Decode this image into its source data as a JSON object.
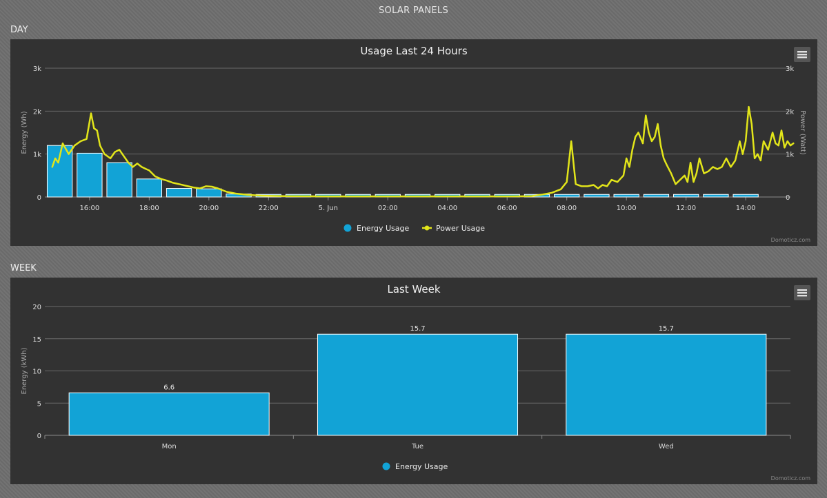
{
  "page": {
    "title": "SOLAR PANELS",
    "day_section": "DAY",
    "week_section": "WEEK",
    "credit": "Domoticz.com"
  },
  "colors": {
    "energy": "#12a3d6",
    "power": "#e2e51a",
    "panel_bg": "#323232",
    "grid": "#6a6a6a"
  },
  "icons": {
    "menu": "hamburger-menu-icon"
  },
  "chart_data": [
    {
      "id": "day",
      "type": "bar+line",
      "title": "Usage Last 24 Hours",
      "ylabel_left": "Energy (Wh)",
      "ylabel_right": "Power (Watt)",
      "ylim_left": [
        0,
        3000
      ],
      "ylim_right": [
        0,
        3000
      ],
      "yticks_left": [
        "0",
        "1k",
        "2k",
        "3k"
      ],
      "yticks_right": [
        "0",
        "1k",
        "2k",
        "3k"
      ],
      "xlim_hours": [
        14.5,
        39.5
      ],
      "x_ticks": [
        {
          "hour": 16,
          "label": "16:00"
        },
        {
          "hour": 18,
          "label": "18:00"
        },
        {
          "hour": 20,
          "label": "20:00"
        },
        {
          "hour": 22,
          "label": "22:00"
        },
        {
          "hour": 24,
          "label": "5. Jun"
        },
        {
          "hour": 26,
          "label": "02:00"
        },
        {
          "hour": 28,
          "label": "04:00"
        },
        {
          "hour": 30,
          "label": "06:00"
        },
        {
          "hour": 32,
          "label": "08:00"
        },
        {
          "hour": 34,
          "label": "10:00"
        },
        {
          "hour": 36,
          "label": "12:00"
        },
        {
          "hour": 38,
          "label": "14:00"
        }
      ],
      "legend": [
        "Energy Usage",
        "Power Usage"
      ],
      "legend_position": "bottom-center",
      "series": [
        {
          "name": "Energy Usage",
          "type": "bar",
          "x_hours": [
            15,
            16,
            17,
            18,
            19,
            20,
            21,
            22,
            23,
            24,
            25,
            26,
            27,
            28,
            29,
            30,
            31,
            32,
            33,
            34,
            35,
            36,
            37,
            38
          ],
          "values": [
            1200,
            1020,
            800,
            420,
            200,
            190,
            70,
            60,
            60,
            60,
            60,
            60,
            60,
            60,
            60,
            60,
            60,
            60,
            60,
            60,
            60,
            60,
            60,
            60
          ]
        },
        {
          "name": "Power Usage",
          "type": "line",
          "points": [
            [
              14.75,
              700
            ],
            [
              14.85,
              900
            ],
            [
              14.95,
              800
            ],
            [
              15.1,
              1250
            ],
            [
              15.3,
              1000
            ],
            [
              15.5,
              1200
            ],
            [
              15.7,
              1300
            ],
            [
              15.9,
              1350
            ],
            [
              16.05,
              1950
            ],
            [
              16.15,
              1600
            ],
            [
              16.25,
              1550
            ],
            [
              16.35,
              1200
            ],
            [
              16.5,
              1000
            ],
            [
              16.7,
              900
            ],
            [
              16.85,
              1050
            ],
            [
              17.0,
              1100
            ],
            [
              17.15,
              950
            ],
            [
              17.3,
              800
            ],
            [
              17.45,
              700
            ],
            [
              17.6,
              780
            ],
            [
              17.75,
              700
            ],
            [
              17.9,
              650
            ],
            [
              18.0,
              620
            ],
            [
              18.2,
              480
            ],
            [
              18.4,
              420
            ],
            [
              18.6,
              380
            ],
            [
              18.8,
              330
            ],
            [
              19.0,
              300
            ],
            [
              19.3,
              250
            ],
            [
              19.5,
              220
            ],
            [
              19.7,
              200
            ],
            [
              19.9,
              250
            ],
            [
              20.1,
              240
            ],
            [
              20.3,
              200
            ],
            [
              20.6,
              120
            ],
            [
              20.9,
              80
            ],
            [
              21.3,
              50
            ],
            [
              21.8,
              30
            ],
            [
              22.5,
              20
            ],
            [
              24,
              15
            ],
            [
              26,
              15
            ],
            [
              28,
              15
            ],
            [
              30,
              15
            ],
            [
              30.8,
              20
            ],
            [
              31.2,
              60
            ],
            [
              31.5,
              100
            ],
            [
              31.8,
              180
            ],
            [
              32.0,
              350
            ],
            [
              32.15,
              1300
            ],
            [
              32.3,
              300
            ],
            [
              32.5,
              250
            ],
            [
              32.7,
              250
            ],
            [
              32.9,
              280
            ],
            [
              33.05,
              200
            ],
            [
              33.2,
              280
            ],
            [
              33.35,
              250
            ],
            [
              33.5,
              400
            ],
            [
              33.7,
              350
            ],
            [
              33.9,
              500
            ],
            [
              34.0,
              900
            ],
            [
              34.1,
              700
            ],
            [
              34.2,
              1100
            ],
            [
              34.3,
              1400
            ],
            [
              34.4,
              1500
            ],
            [
              34.55,
              1250
            ],
            [
              34.65,
              1900
            ],
            [
              34.75,
              1500
            ],
            [
              34.85,
              1300
            ],
            [
              34.95,
              1400
            ],
            [
              35.05,
              1700
            ],
            [
              35.15,
              1200
            ],
            [
              35.25,
              900
            ],
            [
              35.35,
              750
            ],
            [
              35.5,
              550
            ],
            [
              35.65,
              300
            ],
            [
              35.8,
              400
            ],
            [
              35.95,
              500
            ],
            [
              36.05,
              350
            ],
            [
              36.15,
              800
            ],
            [
              36.25,
              350
            ],
            [
              36.35,
              550
            ],
            [
              36.45,
              900
            ],
            [
              36.6,
              550
            ],
            [
              36.75,
              600
            ],
            [
              36.9,
              700
            ],
            [
              37.05,
              650
            ],
            [
              37.2,
              700
            ],
            [
              37.35,
              900
            ],
            [
              37.5,
              700
            ],
            [
              37.65,
              850
            ],
            [
              37.8,
              1300
            ],
            [
              37.9,
              1000
            ],
            [
              38.0,
              1300
            ],
            [
              38.1,
              2100
            ],
            [
              38.2,
              1700
            ],
            [
              38.3,
              900
            ],
            [
              38.4,
              1000
            ],
            [
              38.5,
              850
            ],
            [
              38.6,
              1300
            ],
            [
              38.75,
              1100
            ],
            [
              38.9,
              1500
            ],
            [
              39.0,
              1250
            ],
            [
              39.1,
              1200
            ],
            [
              39.2,
              1550
            ],
            [
              39.3,
              1150
            ],
            [
              39.4,
              1300
            ],
            [
              39.5,
              1200
            ],
            [
              39.6,
              1250
            ]
          ]
        }
      ]
    },
    {
      "id": "week",
      "type": "bar",
      "title": "Last Week",
      "ylabel": "Energy (kWh)",
      "ylim": [
        0,
        20
      ],
      "yticks": [
        "0",
        "5",
        "10",
        "15",
        "20"
      ],
      "categories": [
        "Mon",
        "Tue",
        "Wed"
      ],
      "series": [
        {
          "name": "Energy Usage",
          "values": [
            6.6,
            15.7,
            15.7
          ]
        }
      ],
      "data_labels": [
        "6.6",
        "15.7",
        "15.7"
      ],
      "legend": [
        "Energy Usage"
      ],
      "legend_position": "bottom-center"
    }
  ]
}
